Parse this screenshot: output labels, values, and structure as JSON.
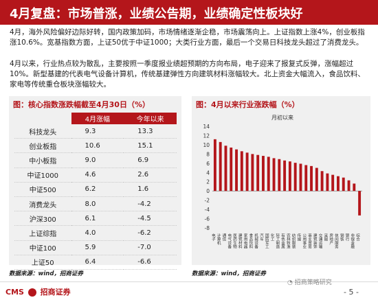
{
  "title": "4月复盘：市场普涨，业绩公告期，业绩确定性板块好",
  "paragraph1": "4月，海外风险偏好边际好转，国内政策加码，市场情绪逐渐企稳，市场震荡向上。上证指数上涨4%，创业板指涨10.6%。宽基指数方面，上证50优于中证1000；大类行业方面，最后一个交易日科技龙头超过了消费龙头。",
  "paragraph2": "4月以来，行业热点较为散乱，主要按照一季度报业绩超预期的方向布局，电子迎来了报复式反弹，涨幅超过10%。新型基建的代表电气设备计算机，传统基建弹性方向建筑材料涨幅较大。北上资金大幅流入，食品饮料、家电等传统重仓板块涨幅较大。",
  "left_panel": {
    "title": "图：核心指数涨跌幅截至4月30日（%）",
    "headers": [
      "",
      "4月涨幅",
      "今年以来"
    ],
    "rows": [
      {
        "name": "科技龙头",
        "apr": "9.3",
        "ytd": "13.3"
      },
      {
        "name": "创业板指",
        "apr": "10.6",
        "ytd": "15.1"
      },
      {
        "name": "中小板指",
        "apr": "9.0",
        "ytd": "6.9"
      },
      {
        "name": "中证1000",
        "apr": "4.6",
        "ytd": "2.6"
      },
      {
        "name": "中证500",
        "apr": "6.2",
        "ytd": "1.6"
      },
      {
        "name": "消费龙头",
        "apr": "8.0",
        "ytd": "-4.2"
      },
      {
        "name": "沪深300",
        "apr": "6.1",
        "ytd": "-4.5"
      },
      {
        "name": "上证综指",
        "apr": "4.0",
        "ytd": "-6.2"
      },
      {
        "name": "中证100",
        "apr": "5.9",
        "ytd": "-7.0"
      },
      {
        "name": "上证50",
        "apr": "6.4",
        "ytd": "-6.6"
      }
    ]
  },
  "right_panel": {
    "title": "图：4月以来行业涨跌幅（%）",
    "series_label": "月初以来"
  },
  "chart_data": {
    "type": "bar",
    "title": "图：4月以来行业涨跌幅（%）",
    "legend": "月初以来",
    "categories": [
      "电子",
      "计算机",
      "通信",
      "电气设备",
      "医药生物",
      "建筑材料",
      "家用电器",
      "食品饮料",
      "机械设备",
      "汽车",
      "国防军工",
      "化工",
      "轻工制造",
      "有色金属",
      "农林牧渔",
      "纺织服装",
      "传媒",
      "公用事业",
      "商业贸易",
      "建筑装饰",
      "交通运输",
      "采掘",
      "房地产",
      "休闲服务",
      "钢铁",
      "银行",
      "非银金融",
      "综合"
    ],
    "values": [
      11.2,
      10.6,
      9.8,
      9.4,
      9.0,
      8.6,
      8.3,
      8.0,
      7.8,
      7.6,
      7.4,
      7.1,
      6.9,
      6.6,
      6.4,
      6.1,
      5.9,
      5.6,
      5.4,
      5.0,
      4.3,
      3.8,
      3.5,
      3.2,
      2.9,
      2.3,
      1.6,
      -5.3
    ],
    "ylim": [
      -8,
      14
    ],
    "yticks": [
      -8,
      -6,
      -4,
      -2,
      0,
      2,
      4,
      6,
      8,
      10,
      12,
      14
    ],
    "bar_color": "#b4161b",
    "grid": false
  },
  "source_left": "数据来源：wind，招商证券",
  "source_right": "数据来源：wind，招商证券",
  "footer": {
    "logo_left": "CMS",
    "logo_right": "招商证券",
    "watermark": "招商策略研究",
    "page": "- 5 -"
  },
  "colors": {
    "brand": "#b4161b",
    "panel_bg": "#f0f0f0"
  }
}
